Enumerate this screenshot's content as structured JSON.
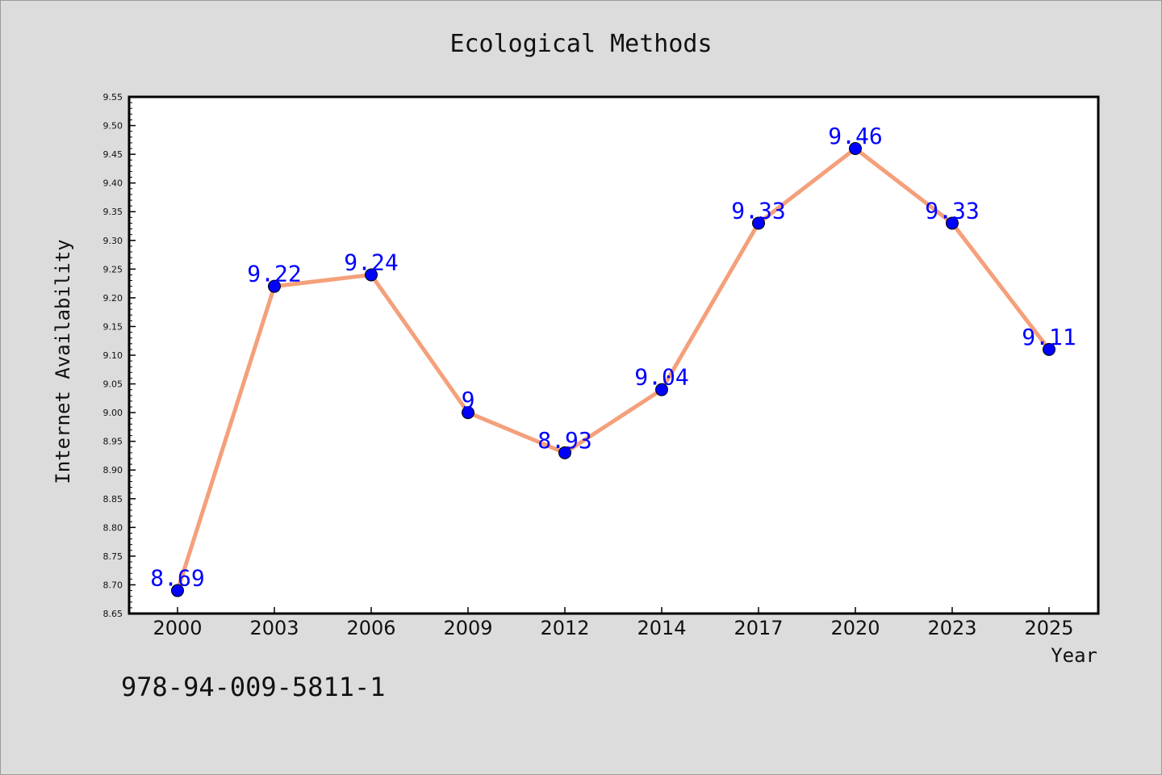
{
  "caption": "978-94-009-5811-1",
  "chart_data": {
    "type": "line",
    "title": "Ecological Methods",
    "xlabel": "Year",
    "ylabel": "Internet Availability",
    "categories": [
      "2000",
      "2003",
      "2006",
      "2009",
      "2012",
      "2014",
      "2017",
      "2020",
      "2023",
      "2025"
    ],
    "values": [
      8.69,
      9.22,
      9.24,
      9.0,
      8.93,
      9.04,
      9.33,
      9.46,
      9.33,
      9.11
    ],
    "data_labels": [
      "8.69",
      "9.22",
      "9.24",
      "9",
      "8.93",
      "9.04",
      "9.33",
      "9.46",
      "9.33",
      "9.11"
    ],
    "ylim": [
      8.65,
      9.55
    ],
    "yticks": [
      "8.65",
      "8.70",
      "8.75",
      "8.80",
      "8.85",
      "8.90",
      "8.95",
      "9.00",
      "9.05",
      "9.10",
      "9.15",
      "9.20",
      "9.25",
      "9.30",
      "9.35",
      "9.40",
      "9.45",
      "9.50",
      "9.55"
    ],
    "grid": false,
    "line_color": "#f4a07a",
    "marker_color": "#0000ff",
    "label_color": "#0000ff"
  }
}
